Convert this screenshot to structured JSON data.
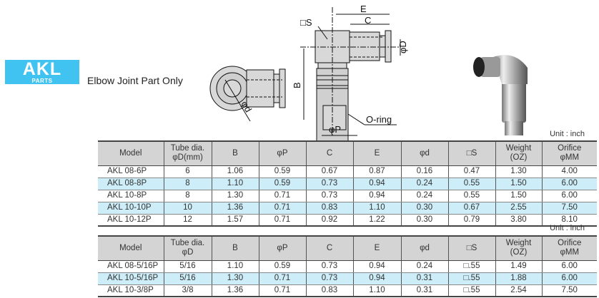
{
  "logo": {
    "main": "AKL",
    "sub": "PARTS",
    "color": "#41c3f1"
  },
  "subtitle": "Elbow Joint Part Only",
  "drawing": {
    "labels": {
      "s": "□S",
      "e": "E",
      "c": "C",
      "d": "φD",
      "b": "B",
      "p": "φP",
      "oring": "O-ring",
      "phid": "φd"
    }
  },
  "unit": "Unit : inch",
  "columns": [
    "Model",
    "Tube dia.\nφD(mm)",
    "B",
    "φP",
    "C",
    "E",
    "φd",
    "□S",
    "Weight\n(OZ)",
    "Orifice\nφMM"
  ],
  "table1": [
    [
      "AKL 08-6P",
      "6",
      "1.06",
      "0.59",
      "0.67",
      "0.87",
      "0.16",
      "0.47",
      "1.30",
      "4.00"
    ],
    [
      "AKL 08-8P",
      "8",
      "1.10",
      "0.59",
      "0.73",
      "0.94",
      "0.24",
      "0.55",
      "1.50",
      "6.00"
    ],
    [
      "AKL 10-8P",
      "8",
      "1.30",
      "0.71",
      "0.73",
      "0.94",
      "0.24",
      "0.55",
      "1.50",
      "6.00"
    ],
    [
      "AKL 10-10P",
      "10",
      "1.36",
      "0.71",
      "0.83",
      "1.10",
      "0.30",
      "0.67",
      "2.55",
      "7.50"
    ],
    [
      "AKL 10-12P",
      "12",
      "1.57",
      "0.71",
      "0.92",
      "1.22",
      "0.30",
      "0.79",
      "3.80",
      "8.10"
    ]
  ],
  "columns2": [
    "Model",
    "Tube dia.\nφD",
    "B",
    "φP",
    "C",
    "E",
    "φd",
    "□S",
    "Weight\n(OZ)",
    "Orifice\nφMM"
  ],
  "table2": [
    [
      "AKL 08-5/16P",
      "5/16",
      "1.10",
      "0.59",
      "0.73",
      "0.94",
      "0.24",
      "□.55",
      "1.49",
      "6.00"
    ],
    [
      "AKL 10-5/16P",
      "5/16",
      "1.30",
      "0.71",
      "0.73",
      "0.94",
      "0.31",
      "□.55",
      "1.88",
      "6.00"
    ],
    [
      "AKL 10-3/8P",
      "3/8",
      "1.36",
      "0.71",
      "0.83",
      "1.10",
      "0.31",
      "□.55",
      "2.54",
      "7.50"
    ]
  ],
  "highlight_color": "#cdeef8"
}
